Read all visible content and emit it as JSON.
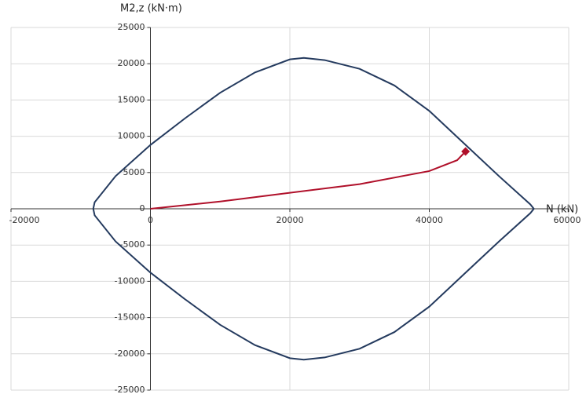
{
  "chart_data": {
    "type": "line",
    "x_label": "N (kN)",
    "y_label": "M2,z (kN·m)",
    "xlim": [
      -20000,
      60000
    ],
    "ylim": [
      -25000,
      25000
    ],
    "xticks": [
      -20000,
      0,
      20000,
      40000,
      60000
    ],
    "yticks": [
      -25000,
      -20000,
      -15000,
      -10000,
      -5000,
      0,
      5000,
      10000,
      15000,
      20000,
      25000
    ],
    "grid": true,
    "series": [
      {
        "color": "#243a5e",
        "x": [
          -8200,
          -8000,
          -5000,
          0,
          5000,
          10000,
          15000,
          20000,
          22000,
          25000,
          30000,
          35000,
          40000,
          45000,
          50000,
          54500,
          55000,
          54500,
          50000,
          45000,
          40000,
          35000,
          30000,
          25000,
          22000,
          20000,
          15000,
          10000,
          5000,
          0,
          -5000,
          -8000,
          -8200
        ],
        "values": [
          0,
          900,
          4500,
          8800,
          12500,
          16000,
          18800,
          20600,
          20800,
          20500,
          19300,
          17000,
          13500,
          9000,
          4500,
          600,
          0,
          -600,
          -4500,
          -9000,
          -13500,
          -17000,
          -19300,
          -20500,
          -20800,
          -20600,
          -18800,
          -16000,
          -12500,
          -8800,
          -4500,
          -900,
          0
        ]
      },
      {
        "color": "#b0102a",
        "end_marker": "diamond",
        "x": [
          0,
          10000,
          20000,
          30000,
          40000,
          44000,
          45200
        ],
        "values": [
          0,
          1000,
          2200,
          3400,
          5200,
          6700,
          7900
        ]
      }
    ]
  }
}
